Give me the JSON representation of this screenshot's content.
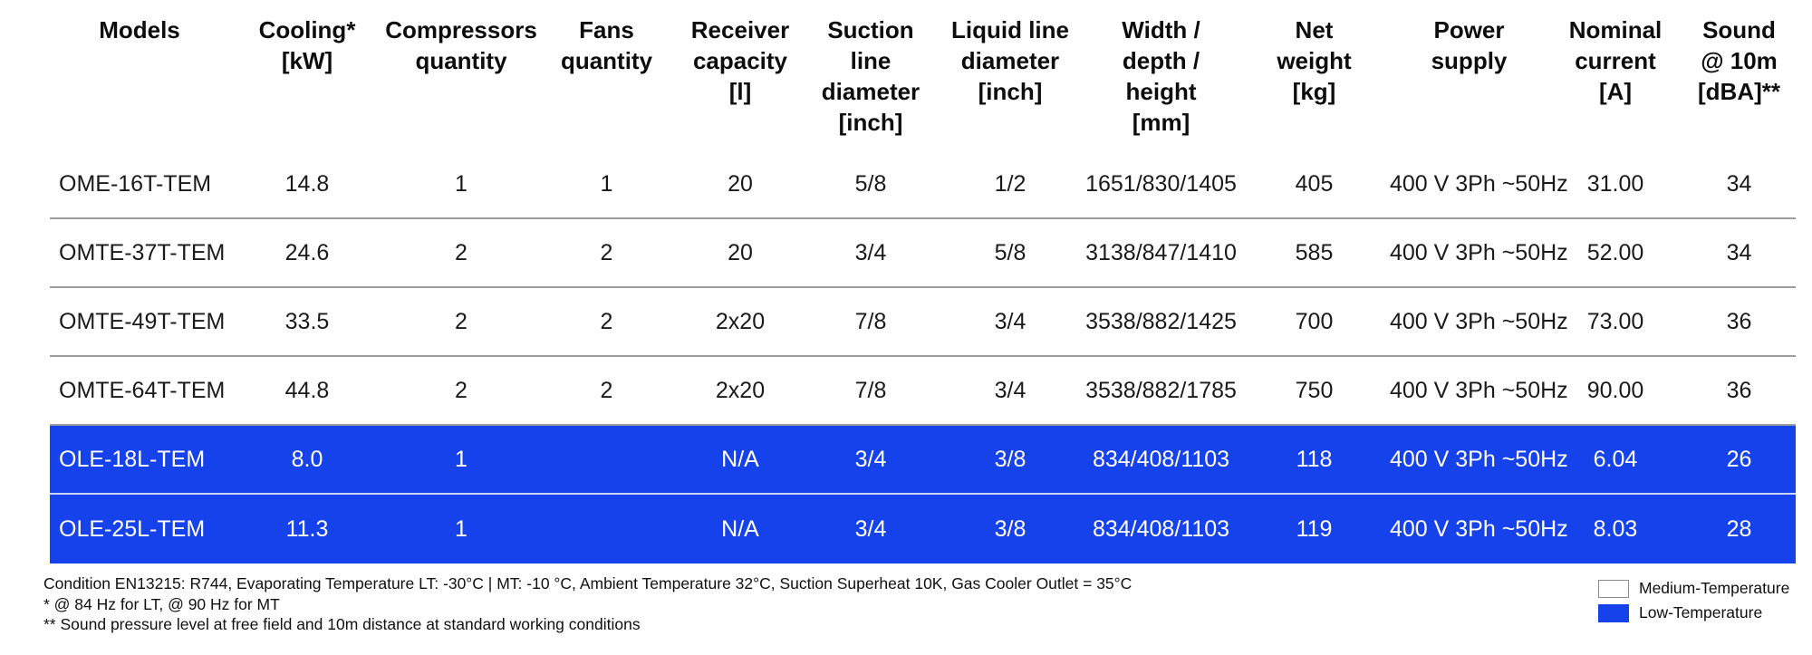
{
  "table": {
    "columns": [
      {
        "id": "models",
        "label": "Models"
      },
      {
        "id": "cooling",
        "label": "Cooling*\n[kW]"
      },
      {
        "id": "compressors",
        "label": "Compressors\nquantity"
      },
      {
        "id": "fans",
        "label": "Fans\nquantity"
      },
      {
        "id": "receiver",
        "label": "Receiver\ncapacity\n[l]"
      },
      {
        "id": "suction",
        "label": "Suction\nline\ndiameter\n[inch]"
      },
      {
        "id": "liquid",
        "label": "Liquid line\ndiameter\n[inch]"
      },
      {
        "id": "dimensions",
        "label": "Width /\ndepth /\nheight\n[mm]"
      },
      {
        "id": "weight",
        "label": "Net\nweight\n[kg]"
      },
      {
        "id": "power",
        "label": "Power\nsupply"
      },
      {
        "id": "current",
        "label": "Nominal\ncurrent\n[A]"
      },
      {
        "id": "sound",
        "label": "Sound\n@ 10m\n[dBA]**"
      }
    ],
    "rows": [
      {
        "type": "medium-temperature",
        "cells": [
          "OME-16T-TEM",
          "14.8",
          "1",
          "1",
          "20",
          "5/8",
          "1/2",
          "1651/830/1405",
          "405",
          "400 V 3Ph ~50Hz",
          "31.00",
          "34"
        ]
      },
      {
        "type": "medium-temperature",
        "cells": [
          "OMTE-37T-TEM",
          "24.6",
          "2",
          "2",
          "20",
          "3/4",
          "5/8",
          "3138/847/1410",
          "585",
          "400 V 3Ph ~50Hz",
          "52.00",
          "34"
        ]
      },
      {
        "type": "medium-temperature",
        "cells": [
          "OMTE-49T-TEM",
          "33.5",
          "2",
          "2",
          "2x20",
          "7/8",
          "3/4",
          "3538/882/1425",
          "700",
          "400 V 3Ph ~50Hz",
          "73.00",
          "36"
        ]
      },
      {
        "type": "medium-temperature",
        "cells": [
          "OMTE-64T-TEM",
          "44.8",
          "2",
          "2",
          "2x20",
          "7/8",
          "3/4",
          "3538/882/1785",
          "750",
          "400 V 3Ph ~50Hz",
          "90.00",
          "36"
        ]
      },
      {
        "type": "low-temperature",
        "cells": [
          "OLE-18L-TEM",
          "8.0",
          "1",
          "",
          "N/A",
          "3/4",
          "3/8",
          "834/408/1103",
          "118",
          "400 V 3Ph ~50Hz",
          "6.04",
          "26"
        ]
      },
      {
        "type": "low-temperature",
        "cells": [
          "OLE-25L-TEM",
          "11.3",
          "1",
          "",
          "N/A",
          "3/4",
          "3/8",
          "834/408/1103",
          "119",
          "400 V 3Ph ~50Hz",
          "8.03",
          "28"
        ]
      }
    ]
  },
  "footnotes": [
    "Condition EN13215: R744, Evaporating Temperature LT: -30°C | MT: -10 °C, Ambient Temperature 32°C, Suction Superheat 10K, Gas Cooler Outlet = 35°C",
    "* @ 84 Hz for LT, @ 90 Hz for MT",
    "** Sound pressure level at free field and 10m distance at standard working conditions"
  ],
  "legend": {
    "medium_label": "Medium-Temperature",
    "low_label": "Low-Temperature"
  },
  "colors": {
    "low_temperature_row": "#1642EC",
    "medium_temperature_row": "#FFFFFF",
    "separator": "#9B9B9B",
    "text": "#111111"
  }
}
